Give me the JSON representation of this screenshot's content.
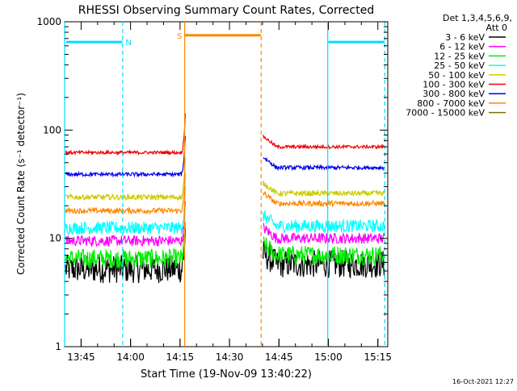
{
  "chart_data": {
    "type": "line",
    "title": "RHESSI Observing Summary Count Rates, Corrected",
    "xlabel": "Start Time (19-Nov-09 13:40:22)",
    "ylabel": "Corrected Count Rate (s⁻¹ detector⁻¹)",
    "y_scale": "log",
    "xlim_minutes_after_1340": [
      0,
      98
    ],
    "ylim": [
      1,
      1000
    ],
    "x_ticks": [
      {
        "t": 5,
        "label": "13:45"
      },
      {
        "t": 20,
        "label": "14:00"
      },
      {
        "t": 35,
        "label": "14:15"
      },
      {
        "t": 50,
        "label": "14:30"
      },
      {
        "t": 65,
        "label": "14:45"
      },
      {
        "t": 80,
        "label": "15:00"
      },
      {
        "t": 95,
        "label": "15:15"
      }
    ],
    "y_ticks": [
      {
        "v": 1,
        "label": "1"
      },
      {
        "v": 10,
        "label": "10"
      },
      {
        "v": 100,
        "label": "100"
      },
      {
        "v": 1000,
        "label": "1000"
      }
    ],
    "legend": {
      "header": [
        "Det 1,3,4,5,6,9,",
        "Att 0"
      ],
      "placement": "right"
    },
    "series": [
      {
        "name": "3 - 6 keV",
        "color": "#000000",
        "level_before": 5.2,
        "level_after": 5.8,
        "noise": 0.13
      },
      {
        "name": "6 - 12 keV",
        "color": "#ff00ff",
        "level_before": 9.5,
        "level_after": 10.0,
        "noise": 0.05
      },
      {
        "name": "12 - 25 keV",
        "color": "#00ee00",
        "level_before": 6.5,
        "level_after": 7.0,
        "noise": 0.09
      },
      {
        "name": "25 - 50 keV",
        "color": "#00ffff",
        "level_before": 12.5,
        "level_after": 13.0,
        "noise": 0.06
      },
      {
        "name": "50 - 100 keV",
        "color": "#cccc00",
        "level_before": 24.0,
        "level_after": 26.0,
        "noise": 0.025
      },
      {
        "name": "100 - 300 keV",
        "color": "#ee0000",
        "level_before": 62.0,
        "level_after": 70.0,
        "noise": 0.015
      },
      {
        "name": "300 - 800 keV",
        "color": "#0000ee",
        "level_before": 39.0,
        "level_after": 45.0,
        "noise": 0.018
      },
      {
        "name": "800 - 7000 keV",
        "color": "#ff8800",
        "level_before": 18.0,
        "level_after": 21.0,
        "noise": 0.025
      },
      {
        "name": "7000 - 15000 keV",
        "color": "#807000",
        "level_before": null,
        "level_after": null,
        "noise": 0
      }
    ],
    "data_gap_minutes": [
      36.6,
      60.2
    ],
    "bands": [
      {
        "label": "N",
        "color": "#00ddff",
        "start": 0.5,
        "end": 17.5,
        "level": 650
      },
      {
        "label": "",
        "color": "#00ddff",
        "start": 80,
        "end": 97,
        "level": 650
      },
      {
        "label": "S",
        "color": "#ff8800",
        "start": 36.5,
        "end": 59.5,
        "level": 750
      }
    ],
    "markers": [
      {
        "t": 0.0,
        "color": "#00ddff",
        "style": "solid"
      },
      {
        "t": 17.6,
        "color": "#00ddff",
        "style": "dashed"
      },
      {
        "t": 36.4,
        "color": "#ff8800",
        "style": "solid"
      },
      {
        "t": 59.6,
        "color": "#ff8800",
        "style": "dashed"
      },
      {
        "t": 79.8,
        "color": "#00ddff",
        "style": "solid"
      },
      {
        "t": 97.1,
        "color": "#00ddff",
        "style": "dashed"
      }
    ]
  },
  "footer": {
    "timestamp": "16-Oct-2021 12:27"
  }
}
